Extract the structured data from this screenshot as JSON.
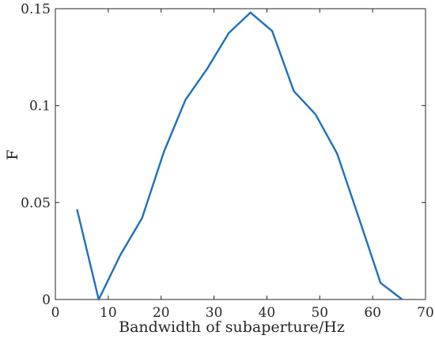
{
  "chart_data": {
    "type": "line",
    "xlabel": "Bandwidth of subaperture/Hz",
    "ylabel": "F",
    "xlim": [
      0,
      70
    ],
    "ylim": [
      0,
      0.15
    ],
    "xticks": [
      0,
      10,
      20,
      30,
      40,
      50,
      60,
      70
    ],
    "yticks": [
      0,
      0.05,
      0.1,
      0.15
    ],
    "xtick_labels": [
      "0",
      "10",
      "20",
      "30",
      "40",
      "50",
      "60",
      "70"
    ],
    "ytick_labels": [
      "0",
      "0.05",
      "0.1",
      "0.15"
    ],
    "grid": false,
    "box": true,
    "series": [
      {
        "color": "#1f6fbf",
        "x": [
          4.1,
          8.2,
          12.3,
          16.4,
          20.5,
          24.6,
          28.7,
          32.8,
          36.9,
          41.0,
          45.1,
          49.2,
          53.3,
          57.4,
          61.5,
          65.6
        ],
        "y": [
          0.0465,
          0.0,
          0.023,
          0.042,
          0.076,
          0.103,
          0.119,
          0.1375,
          0.148,
          0.1385,
          0.1075,
          0.0955,
          0.0752,
          0.042,
          0.0085,
          0.0
        ]
      }
    ]
  }
}
